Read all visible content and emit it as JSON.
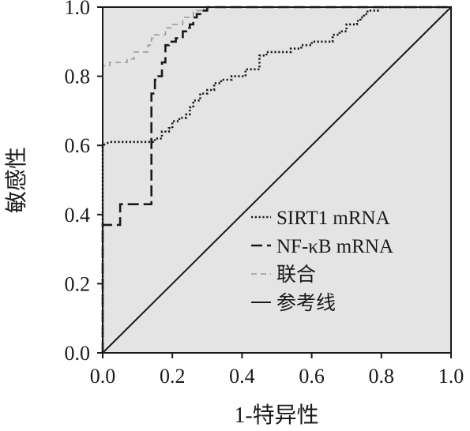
{
  "chart_data": {
    "type": "line",
    "title": "",
    "xlabel": "1-特异性",
    "ylabel": "敏感性",
    "xlim": [
      0,
      1
    ],
    "ylim": [
      0,
      1
    ],
    "xticks": [
      "0.0",
      "0.2",
      "0.4",
      "0.6",
      "0.8",
      "1.0"
    ],
    "yticks": [
      "0.0",
      "0.2",
      "0.4",
      "0.6",
      "0.8",
      "1.0"
    ],
    "background": "#e4e4e4",
    "legend_position": "lower-right",
    "series": [
      {
        "name": "SIRT1 mRNA",
        "style": "dotted",
        "color": "#1a1a1a",
        "x": [
          0.0,
          0.0,
          0.02,
          0.15,
          0.15,
          0.17,
          0.17,
          0.19,
          0.19,
          0.2,
          0.2,
          0.22,
          0.22,
          0.24,
          0.24,
          0.25,
          0.25,
          0.26,
          0.26,
          0.28,
          0.28,
          0.3,
          0.3,
          0.32,
          0.32,
          0.34,
          0.34,
          0.37,
          0.37,
          0.41,
          0.41,
          0.45,
          0.45,
          0.47,
          0.47,
          0.54,
          0.54,
          0.57,
          0.57,
          0.6,
          0.6,
          0.66,
          0.66,
          0.68,
          0.68,
          0.7,
          0.7,
          0.73,
          0.73,
          0.74,
          0.74,
          0.75,
          0.75,
          0.76,
          0.76,
          0.78,
          0.78,
          0.79,
          0.79,
          0.82,
          0.82,
          1.0
        ],
        "y": [
          0.0,
          0.6,
          0.61,
          0.61,
          0.62,
          0.62,
          0.64,
          0.64,
          0.65,
          0.65,
          0.67,
          0.67,
          0.68,
          0.68,
          0.69,
          0.69,
          0.71,
          0.71,
          0.73,
          0.73,
          0.75,
          0.75,
          0.76,
          0.76,
          0.78,
          0.78,
          0.79,
          0.79,
          0.8,
          0.8,
          0.82,
          0.82,
          0.86,
          0.86,
          0.87,
          0.87,
          0.88,
          0.88,
          0.89,
          0.89,
          0.9,
          0.9,
          0.92,
          0.92,
          0.93,
          0.93,
          0.95,
          0.95,
          0.96,
          0.96,
          0.97,
          0.97,
          0.98,
          0.98,
          0.99,
          0.99,
          0.99,
          0.99,
          1.0,
          1.0,
          1.0,
          1.0
        ]
      },
      {
        "name": "NF-κB mRNA",
        "style": "dashed",
        "color": "#1a1a1a",
        "x": [
          0.0,
          0.0,
          0.05,
          0.05,
          0.14,
          0.14,
          0.15,
          0.15,
          0.16,
          0.16,
          0.17,
          0.17,
          0.18,
          0.18,
          0.19,
          0.19,
          0.21,
          0.21,
          0.23,
          0.23,
          0.24,
          0.24,
          0.25,
          0.25,
          0.26,
          0.26,
          0.27,
          0.27,
          0.28,
          0.28,
          0.29,
          0.29,
          0.3,
          0.3,
          0.31,
          0.31,
          0.33,
          0.33,
          1.0
        ],
        "y": [
          0.0,
          0.37,
          0.37,
          0.43,
          0.43,
          0.75,
          0.75,
          0.79,
          0.79,
          0.8,
          0.8,
          0.84,
          0.84,
          0.89,
          0.89,
          0.9,
          0.9,
          0.91,
          0.91,
          0.93,
          0.93,
          0.94,
          0.94,
          0.95,
          0.95,
          0.97,
          0.97,
          0.98,
          0.98,
          0.99,
          0.99,
          0.99,
          0.99,
          1.0,
          1.0,
          1.0,
          1.0,
          1.0,
          1.0
        ]
      },
      {
        "name": "联合",
        "style": "fine-dashed",
        "color": "#9a9a9a",
        "x": [
          0.0,
          0.0,
          0.02,
          0.02,
          0.07,
          0.07,
          0.09,
          0.09,
          0.13,
          0.13,
          0.14,
          0.14,
          0.15,
          0.15,
          0.18,
          0.18,
          0.2,
          0.2,
          0.23,
          0.23,
          0.26,
          0.26,
          0.29,
          0.29,
          1.0
        ],
        "y": [
          0.0,
          0.83,
          0.83,
          0.84,
          0.84,
          0.85,
          0.85,
          0.87,
          0.87,
          0.89,
          0.89,
          0.91,
          0.91,
          0.92,
          0.92,
          0.94,
          0.94,
          0.95,
          0.95,
          0.97,
          0.97,
          0.99,
          0.99,
          1.0,
          1.0
        ]
      },
      {
        "name": "参考线",
        "style": "solid",
        "color": "#1a1a1a",
        "x": [
          0.0,
          1.0
        ],
        "y": [
          0.0,
          1.0
        ]
      }
    ]
  }
}
